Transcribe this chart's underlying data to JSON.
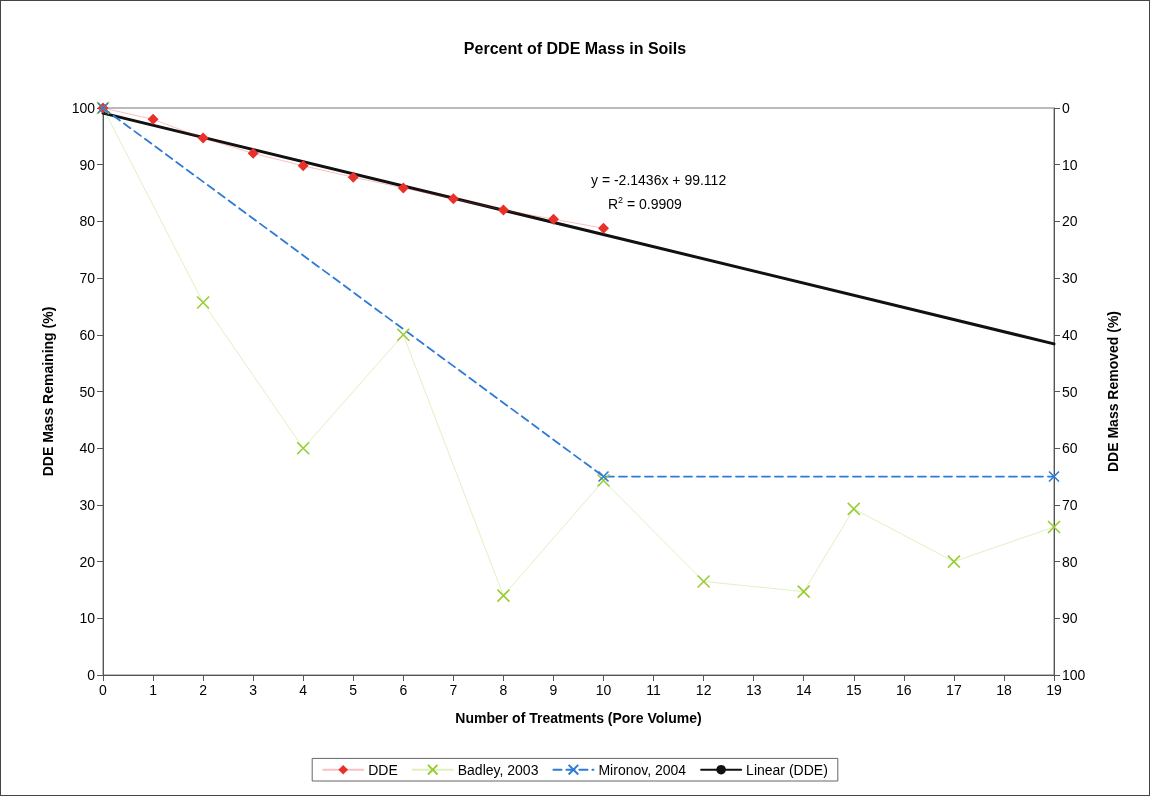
{
  "chart_data": {
    "type": "line",
    "title": "Percent of DDE Mass in Soils",
    "xlabel": "Number of Treatments (Pore Volume)",
    "ylabel": "DDE Mass Remaining (%)",
    "y2label": "DDE Mass Removed (%)",
    "xlim": [
      0,
      19
    ],
    "xticks": [
      0,
      1,
      2,
      3,
      4,
      5,
      6,
      7,
      8,
      9,
      10,
      11,
      12,
      13,
      14,
      15,
      16,
      17,
      18,
      19
    ],
    "ylim": [
      0,
      100
    ],
    "yticks": [
      0,
      10,
      20,
      30,
      40,
      50,
      60,
      70,
      80,
      90,
      100
    ],
    "y2lim": [
      100,
      0
    ],
    "y2ticks": [
      0,
      10,
      20,
      30,
      40,
      50,
      60,
      70,
      80,
      90,
      100
    ],
    "grid": false,
    "legend": "bottom",
    "annotations": [
      "y = -2.1436x + 99.112",
      "R$^{2}$ = 0.9909"
    ],
    "series": [
      {
        "name": "DDE",
        "color": "#e8312a",
        "marker": "diamond",
        "line_style": "solid",
        "x": [
          0,
          1,
          2,
          3,
          4,
          5,
          6,
          7,
          8,
          9,
          10
        ],
        "values": [
          100,
          98,
          94.7,
          92,
          89.8,
          87.8,
          85.9,
          84,
          82,
          80.4,
          78.8
        ]
      },
      {
        "name": "Badley, 2003",
        "color": "#99cc33",
        "marker": "cross",
        "line_style": "solid",
        "x": [
          0,
          2,
          4,
          6,
          8,
          10,
          12,
          14,
          15,
          17,
          19
        ],
        "values": [
          100,
          65.7,
          40,
          60,
          14,
          34.3,
          16.5,
          14.7,
          29.3,
          20,
          26.1
        ]
      },
      {
        "name": "Mironov, 2004",
        "color": "#2f7ad6",
        "marker": "cross",
        "line_style": "dashed",
        "x": [
          0,
          10,
          19
        ],
        "values": [
          100,
          35,
          35
        ]
      },
      {
        "name": "Linear (DDE)",
        "color": "#111111",
        "marker": "none",
        "line_style": "solid",
        "x": [
          0,
          19
        ],
        "values": [
          99.1,
          58.4
        ]
      }
    ]
  }
}
